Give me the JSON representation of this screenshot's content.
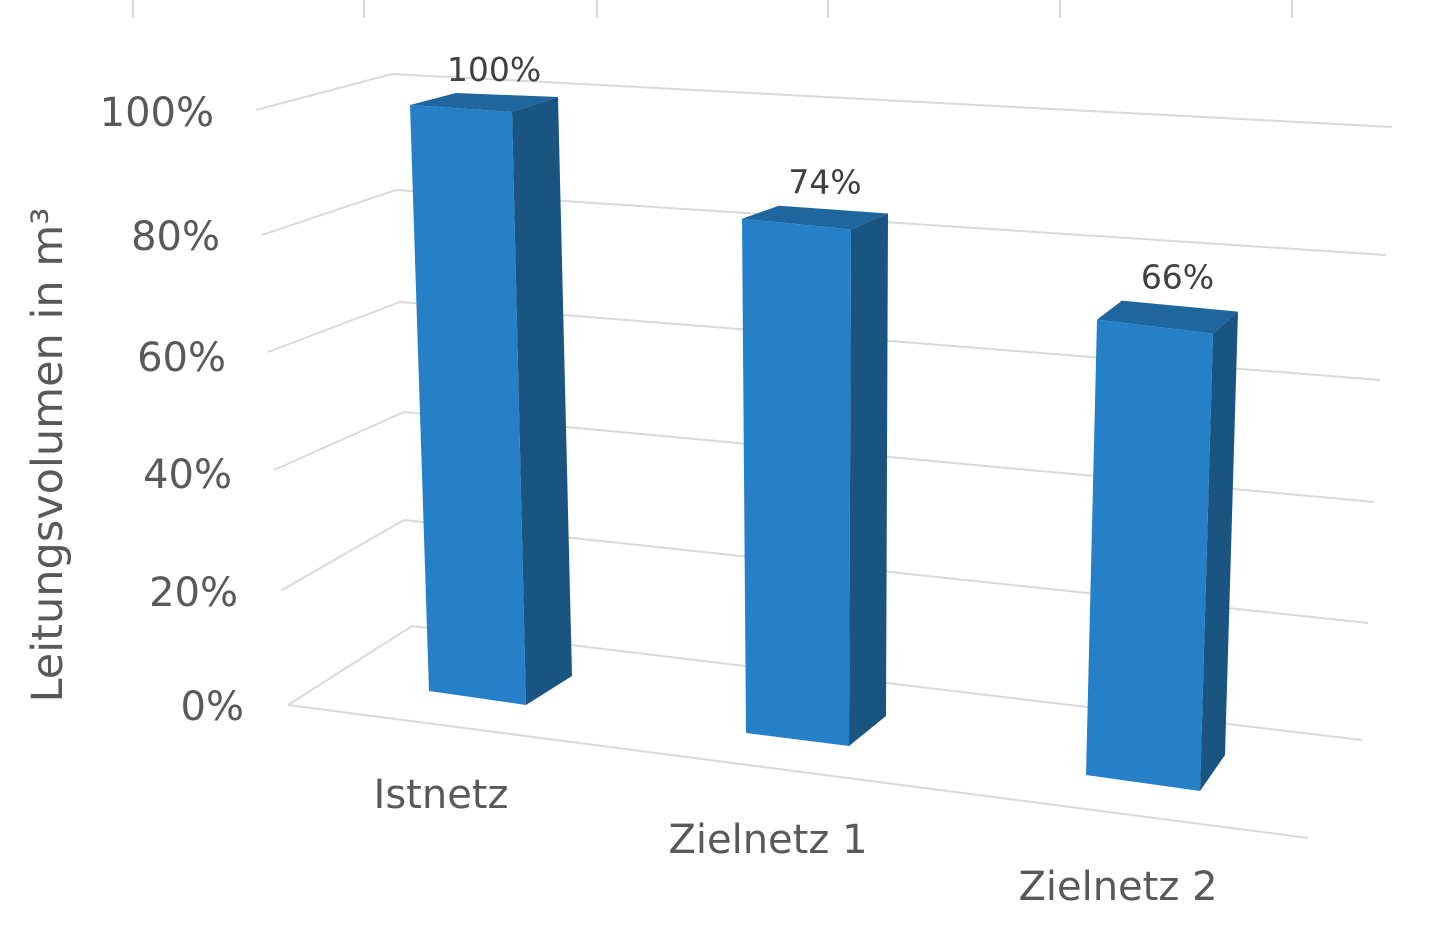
{
  "chart_data": {
    "type": "bar",
    "three_d": true,
    "categories": [
      "Istnetz",
      "Zielnetz 1",
      "Zielnetz 2"
    ],
    "values": [
      100,
      74,
      66
    ],
    "data_labels": [
      "100%",
      "74%",
      "66%"
    ],
    "ylabel": "Leitungsvolumen in m³",
    "ylim": [
      0,
      100
    ],
    "ytick_values": [
      0,
      20,
      40,
      60,
      80,
      100
    ],
    "ytick_labels": [
      "0%",
      "20%",
      "40%",
      "60%",
      "80%",
      "100%"
    ],
    "grid": true,
    "legend": "none",
    "colors": {
      "bar_front": "#2680c8",
      "bar_side": "#1a5480",
      "bar_top": "#1f669f",
      "grid": "#d9d9d9",
      "text": "#595959",
      "data_label_text": "#404040"
    }
  }
}
